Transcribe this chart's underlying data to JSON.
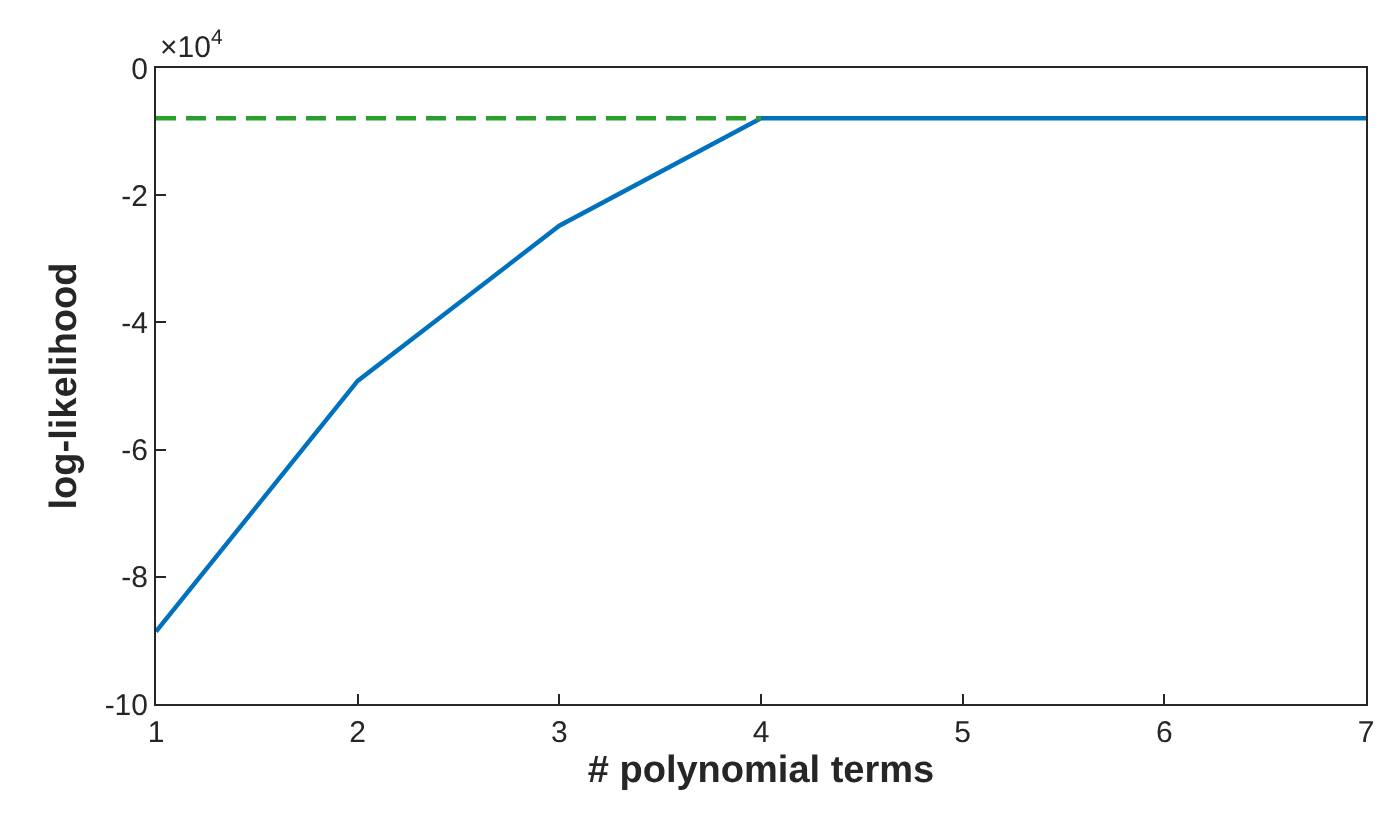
{
  "chart_data": {
    "type": "line",
    "xlabel": "# polynomial terms",
    "ylabel": "log-likelihood",
    "annotations": [
      "×10$^{4}$"
    ],
    "x": [
      1,
      2,
      3,
      4,
      5,
      6,
      7
    ],
    "series": [
      {
        "color": "#0072bd",
        "values": [
          -8.86,
          -4.92,
          -2.48,
          -0.79,
          -0.79,
          -0.79,
          -0.79
        ],
        "line_style": "solid"
      },
      {
        "color": "#2ca02c",
        "x": [
          1,
          4
        ],
        "values": [
          -0.79,
          -0.79
        ],
        "line_style": "dashed"
      }
    ],
    "xlim": [
      1,
      7
    ],
    "xticks": [
      1,
      2,
      3,
      4,
      5,
      6,
      7
    ],
    "ylim": [
      -10,
      0
    ],
    "yticks": [
      -10,
      -8,
      -6,
      -4,
      -2,
      0
    ],
    "marker": "none"
  }
}
